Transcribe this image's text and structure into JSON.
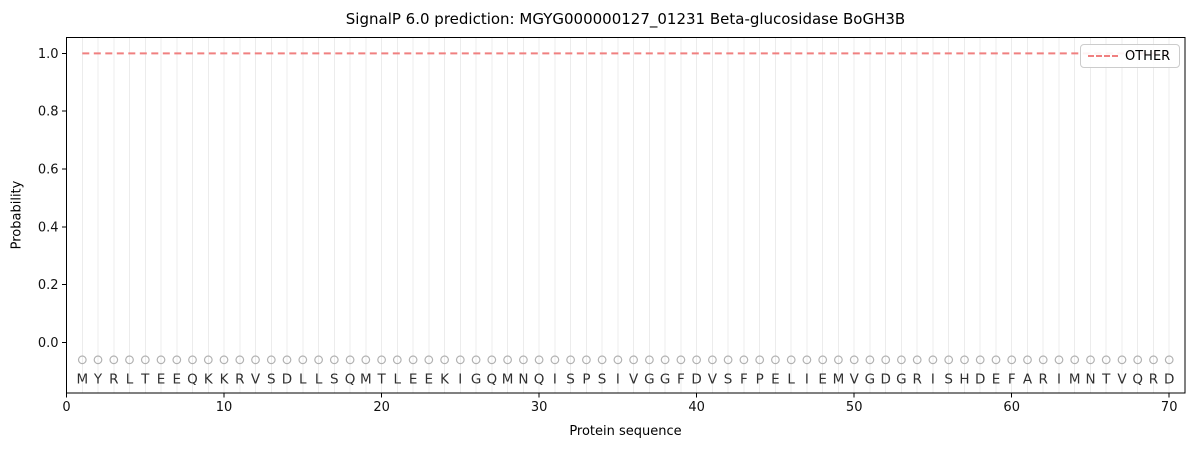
{
  "chart_data": {
    "type": "line",
    "title": "SignalP 6.0 prediction: MGYG000000127_01231 Beta-glucosidase BoGH3B",
    "xlabel": "Protein sequence",
    "ylabel": "Probability",
    "xlim": [
      0,
      71
    ],
    "ylim": [
      -0.175,
      1.055
    ],
    "xticks": [
      0,
      10,
      20,
      30,
      40,
      50,
      60,
      70
    ],
    "yticks": [
      0.0,
      0.2,
      0.4,
      0.6,
      0.8,
      1.0
    ],
    "grid": {
      "vertical_line_per_residue": true,
      "color": "#ececec",
      "horizontal": false
    },
    "sequence": "MYRLTEEQKKRVSDLLSQMTLEEKIGQMNQISPSIVGGFDVSFPELIEMVGDGRISHDEFARIMNTVQRD",
    "sequence_positions": {
      "start": 1,
      "end": 70
    },
    "sequence_letter_color": "#2f2f2f",
    "sequence_letter_y": -0.125,
    "residue_markers": {
      "shape": "open-circle",
      "color": "#b2b2b2",
      "y_value": -0.06,
      "radius_px": 3.8
    },
    "series": [
      {
        "name": "OTHER",
        "line_style": "dashed",
        "color": "#f08080",
        "x_start": 1,
        "x_end": 70,
        "constant_value": 1.0
      }
    ],
    "legend": {
      "position": "upper-right",
      "entries": [
        {
          "label": "OTHER",
          "line_style": "dashed",
          "color": "#f08080"
        }
      ]
    },
    "axis_color": "#000000",
    "tick_label_color": "#111111"
  }
}
